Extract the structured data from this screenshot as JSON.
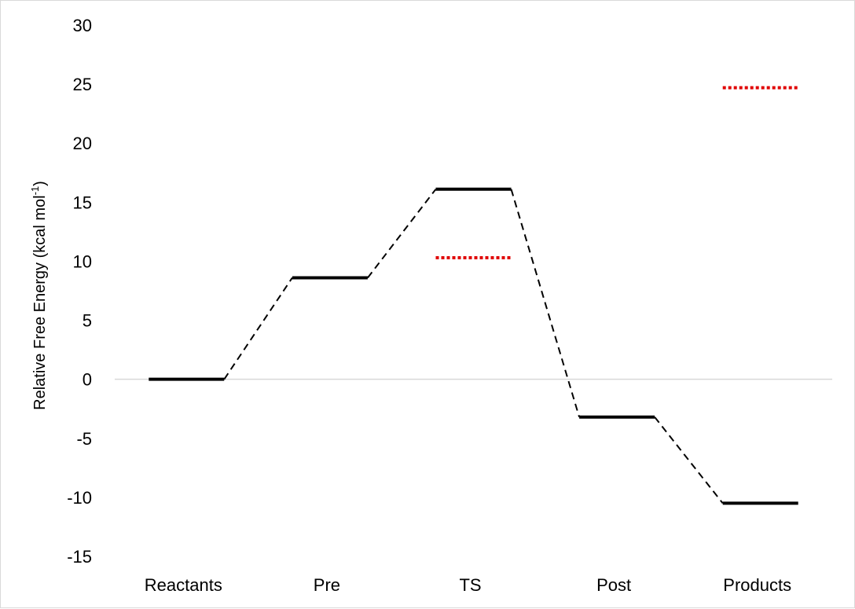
{
  "chart_data": {
    "type": "line",
    "title": "",
    "xlabel": "",
    "ylabel": {
      "main": "Relative Free Energy (kcal mol",
      "superscript": "-1",
      "close": ")"
    },
    "ylim": [
      -15,
      30
    ],
    "yticks": [
      30,
      25,
      20,
      15,
      10,
      5,
      0,
      -5,
      -10,
      -15
    ],
    "categories": [
      "Reactants",
      "Pre",
      "TS",
      "Post",
      "Products"
    ],
    "zero_line": true,
    "grid": false,
    "legend": "none",
    "series": [
      {
        "style": "solid-levels-dashed-connectors",
        "color": "#000000",
        "values": [
          0,
          8.6,
          16.1,
          -3.2,
          -10.5
        ]
      },
      {
        "style": "dotted-levels",
        "color": "#e00000",
        "points": [
          {
            "category": "TS",
            "value": 10.3
          },
          {
            "category": "Products",
            "value": 24.7
          }
        ]
      }
    ]
  }
}
